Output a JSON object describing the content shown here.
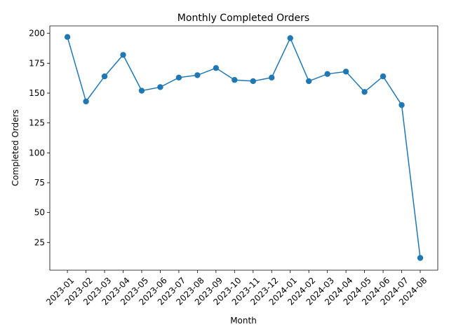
{
  "chart_data": {
    "type": "line",
    "title": "Monthly Completed Orders",
    "xlabel": "Month",
    "ylabel": "Completed Orders",
    "categories": [
      "2023-01",
      "2023-02",
      "2023-03",
      "2023-04",
      "2023-05",
      "2023-06",
      "2023-07",
      "2023-08",
      "2023-09",
      "2023-10",
      "2023-11",
      "2023-12",
      "2024-01",
      "2024-02",
      "2024-03",
      "2024-04",
      "2024-05",
      "2024-06",
      "2024-07",
      "2024-08"
    ],
    "series": [
      {
        "values": [
          197,
          143,
          164,
          182,
          152,
          155,
          163,
          165,
          171,
          161,
          160,
          163,
          196,
          160,
          166,
          168,
          151,
          164,
          140,
          12
        ],
        "color": "#1f77b4"
      }
    ],
    "yticks": [
      25,
      50,
      75,
      100,
      125,
      150,
      175,
      200
    ],
    "ylim": [
      1.75,
      206.25
    ],
    "grid": false,
    "marker": "circle"
  }
}
